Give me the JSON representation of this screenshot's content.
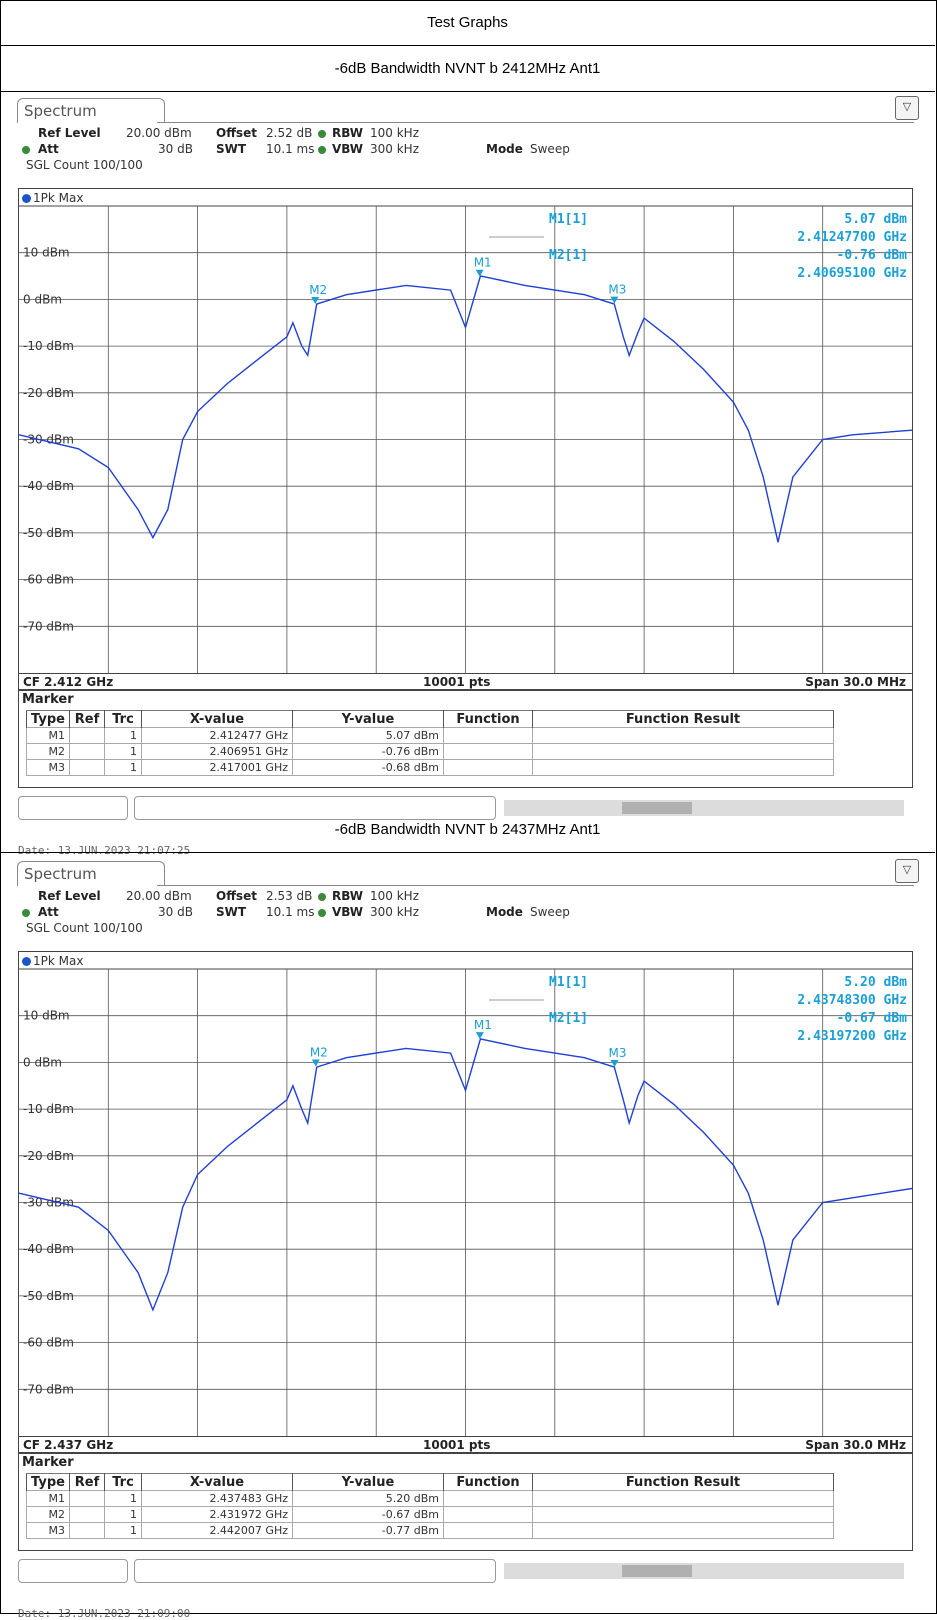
{
  "page_title": "Test Graphs",
  "panels": [
    {
      "caption": "-6dB Bandwidth NVNT b 2412MHz Ant1",
      "tab": "Spectrum",
      "ref_level_label": "Ref Level",
      "ref_level": "20.00 dBm",
      "offset_label": "Offset",
      "offset": "2.52 dB",
      "rbw_label": "RBW",
      "rbw": "100 kHz",
      "att_label": "Att",
      "att": "30 dB",
      "swt_label": "SWT",
      "swt": "10.1 ms",
      "vbw_label": "VBW",
      "vbw": "300 kHz",
      "mode_label": "Mode",
      "mode": "Sweep",
      "sgl_count": "SGL Count 100/100",
      "trace_label": "1Pk Max",
      "marker_readout": {
        "m1_label": "M1[1]",
        "m1_level": "5.07 dBm",
        "m1_freq": "2.41247700 GHz",
        "m2_label": "M2[1]",
        "m2_level": "-0.76 dBm",
        "m2_freq": "2.40695100 GHz"
      },
      "cf": "CF 2.412 GHz",
      "pts": "10001 pts",
      "span": "Span 30.0 MHz",
      "marker_title": "Marker",
      "table_headers": [
        "Type",
        "Ref",
        "Trc",
        "X-value",
        "Y-value",
        "Function",
        "Function Result"
      ],
      "table_rows": [
        [
          "M1",
          "",
          "1",
          "2.412477 GHz",
          "5.07 dBm",
          "",
          ""
        ],
        [
          "M2",
          "",
          "1",
          "2.406951 GHz",
          "-0.76 dBm",
          "",
          ""
        ],
        [
          "M3",
          "",
          "1",
          "2.417001 GHz",
          "-0.68 dBm",
          "",
          ""
        ]
      ],
      "date": "Date: 13.JUN.2023  21:07:25",
      "chart_data": {
        "type": "line",
        "ylim": [
          -80,
          20
        ],
        "y_ticks": [
          "10 dBm",
          "0 dBm",
          "-10 dBm",
          "-20 dBm",
          "-30 dBm",
          "-40 dBm",
          "-50 dBm",
          "-60 dBm",
          "-70 dBm"
        ],
        "x_mhz": [
          -15,
          -13,
          -12,
          -11,
          -10.5,
          -10,
          -9.5,
          -9,
          -8,
          -7,
          -6,
          -5.8,
          -5.5,
          -5.3,
          -5,
          -4,
          -2,
          -0.5,
          0,
          0.5,
          2,
          4,
          5,
          5.3,
          5.5,
          5.8,
          6,
          7,
          8,
          9,
          9.5,
          10,
          10.5,
          11,
          12,
          13,
          15
        ],
        "y_dbm": [
          -29,
          -32,
          -36,
          -45,
          -51,
          -45,
          -30,
          -24,
          -18,
          -13,
          -8,
          -5,
          -10,
          -12,
          -1,
          1,
          3,
          2,
          -6,
          5,
          3,
          1,
          -1,
          -8,
          -12,
          -7,
          -4,
          -9,
          -15,
          -22,
          -28,
          -38,
          -52,
          -38,
          -30,
          -29,
          -28
        ],
        "markers": [
          {
            "name": "M1",
            "x_mhz": 0.477,
            "y_dbm": 5.07
          },
          {
            "name": "M2",
            "x_mhz": -5.049,
            "y_dbm": -0.76
          },
          {
            "name": "M3",
            "x_mhz": 5.001,
            "y_dbm": -0.68
          }
        ]
      }
    },
    {
      "caption": "-6dB Bandwidth NVNT b 2437MHz Ant1",
      "tab": "Spectrum",
      "ref_level_label": "Ref Level",
      "ref_level": "20.00 dBm",
      "offset_label": "Offset",
      "offset": "2.53 dB",
      "rbw_label": "RBW",
      "rbw": "100 kHz",
      "att_label": "Att",
      "att": "30 dB",
      "swt_label": "SWT",
      "swt": "10.1 ms",
      "vbw_label": "VBW",
      "vbw": "300 kHz",
      "mode_label": "Mode",
      "mode": "Sweep",
      "sgl_count": "SGL Count 100/100",
      "trace_label": "1Pk Max",
      "marker_readout": {
        "m1_label": "M1[1]",
        "m1_level": "5.20 dBm",
        "m1_freq": "2.43748300 GHz",
        "m2_label": "M2[1]",
        "m2_level": "-0.67 dBm",
        "m2_freq": "2.43197200 GHz"
      },
      "cf": "CF 2.437 GHz",
      "pts": "10001 pts",
      "span": "Span 30.0 MHz",
      "marker_title": "Marker",
      "table_headers": [
        "Type",
        "Ref",
        "Trc",
        "X-value",
        "Y-value",
        "Function",
        "Function Result"
      ],
      "table_rows": [
        [
          "M1",
          "",
          "1",
          "2.437483 GHz",
          "5.20 dBm",
          "",
          ""
        ],
        [
          "M2",
          "",
          "1",
          "2.431972 GHz",
          "-0.67 dBm",
          "",
          ""
        ],
        [
          "M3",
          "",
          "1",
          "2.442007 GHz",
          "-0.77 dBm",
          "",
          ""
        ]
      ],
      "date": "Date: 13.JUN.2023  21:09:00",
      "chart_data": {
        "type": "line",
        "ylim": [
          -80,
          20
        ],
        "y_ticks": [
          "10 dBm",
          "0 dBm",
          "-10 dBm",
          "-20 dBm",
          "-30 dBm",
          "-40 dBm",
          "-50 dBm",
          "-60 dBm",
          "-70 dBm"
        ],
        "x_mhz": [
          -15,
          -13,
          -12,
          -11,
          -10.5,
          -10,
          -9.5,
          -9,
          -8,
          -7,
          -6,
          -5.8,
          -5.5,
          -5.3,
          -5,
          -4,
          -2,
          -0.5,
          0,
          0.5,
          2,
          4,
          5,
          5.3,
          5.5,
          5.8,
          6,
          7,
          8,
          9,
          9.5,
          10,
          10.5,
          11,
          12,
          13,
          15
        ],
        "y_dbm": [
          -28,
          -31,
          -36,
          -45,
          -53,
          -45,
          -31,
          -24,
          -18,
          -13,
          -8,
          -5,
          -10,
          -13,
          -1,
          1,
          3,
          2,
          -6,
          5,
          3,
          1,
          -1,
          -8,
          -13,
          -7,
          -4,
          -9,
          -15,
          -22,
          -28,
          -38,
          -52,
          -38,
          -30,
          -29,
          -27
        ],
        "markers": [
          {
            "name": "M1",
            "x_mhz": 0.483,
            "y_dbm": 5.2
          },
          {
            "name": "M2",
            "x_mhz": -5.028,
            "y_dbm": -0.67
          },
          {
            "name": "M3",
            "x_mhz": 5.007,
            "y_dbm": -0.77
          }
        ]
      }
    }
  ]
}
